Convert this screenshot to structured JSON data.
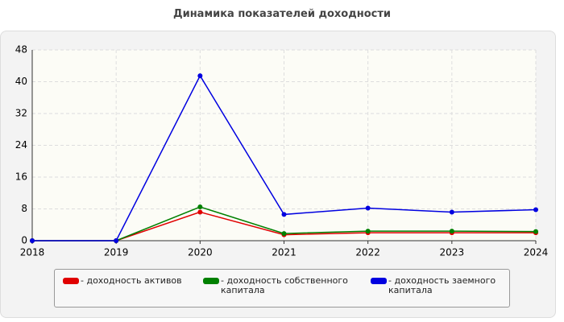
{
  "chart_data": {
    "type": "line",
    "title": "Динамика показателей доходности",
    "categories": [
      "2018",
      "2019",
      "2020",
      "2021",
      "2022",
      "2023",
      "2024"
    ],
    "series": [
      {
        "name": "- доходность активов",
        "color": "#e00000",
        "values": [
          0,
          0,
          7.2,
          1.5,
          2.0,
          2.0,
          2.0
        ]
      },
      {
        "name": "- доходность собственного капитала",
        "color": "#008000",
        "values": [
          0,
          0,
          8.5,
          1.8,
          2.4,
          2.4,
          2.3
        ]
      },
      {
        "name": "- доходность заемного капитала",
        "color": "#0000e0",
        "values": [
          0,
          0,
          41.5,
          6.6,
          8.2,
          7.2,
          7.8
        ]
      }
    ],
    "ylim": [
      0,
      48
    ],
    "yticks": [
      0,
      8,
      16,
      24,
      32,
      40,
      48
    ],
    "grid": true
  }
}
